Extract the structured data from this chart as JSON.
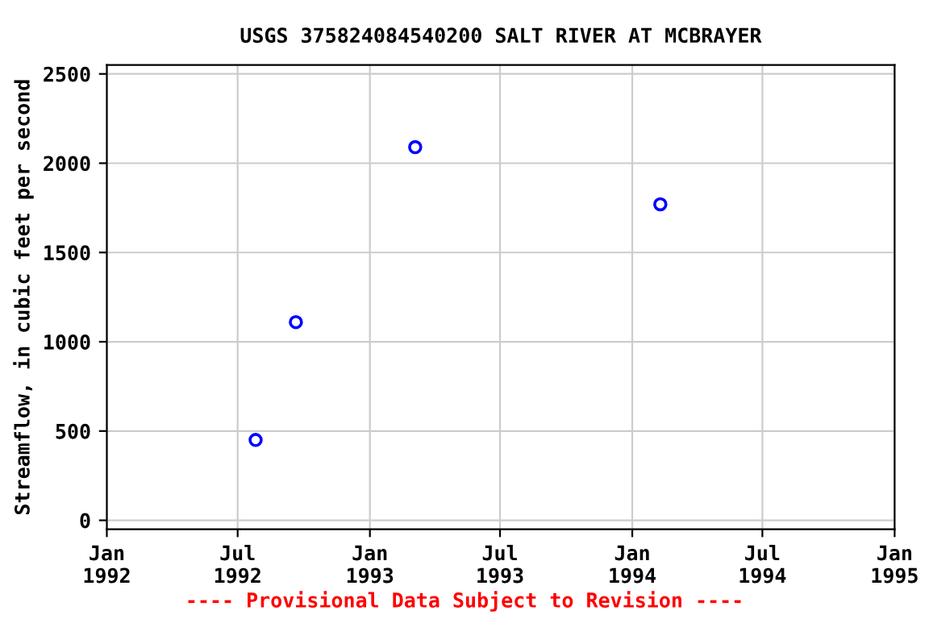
{
  "chart_data": {
    "type": "scatter",
    "title": "USGS 375824084540200 SALT RIVER AT MCBRAYER",
    "ylabel": "Streamflow, in cubic feet per second",
    "x": [
      "1992-07-26",
      "1992-09-20",
      "1993-03-05",
      "1994-02-09"
    ],
    "values": [
      450,
      1110,
      2090,
      1770
    ],
    "color": "#0000ff",
    "marker": "circle",
    "xlim": [
      "1992-01-01",
      "1995-01-01"
    ],
    "xticks": [
      {
        "value": "1992-01-01",
        "label": "Jan\n1992"
      },
      {
        "value": "1992-07-01",
        "label": "Jul\n1992"
      },
      {
        "value": "1993-01-01",
        "label": "Jan\n1993"
      },
      {
        "value": "1993-07-01",
        "label": "Jul\n1993"
      },
      {
        "value": "1994-01-01",
        "label": "Jan\n1994"
      },
      {
        "value": "1994-07-01",
        "label": "Jul\n1994"
      },
      {
        "value": "1995-01-01",
        "label": "Jan\n1995"
      }
    ],
    "ylim": [
      -50,
      2550
    ],
    "yticks": [
      0,
      500,
      1000,
      1500,
      2000,
      2500
    ],
    "grid": true,
    "annotations": [
      "---- Provisional Data Subject to Revision ----"
    ]
  }
}
